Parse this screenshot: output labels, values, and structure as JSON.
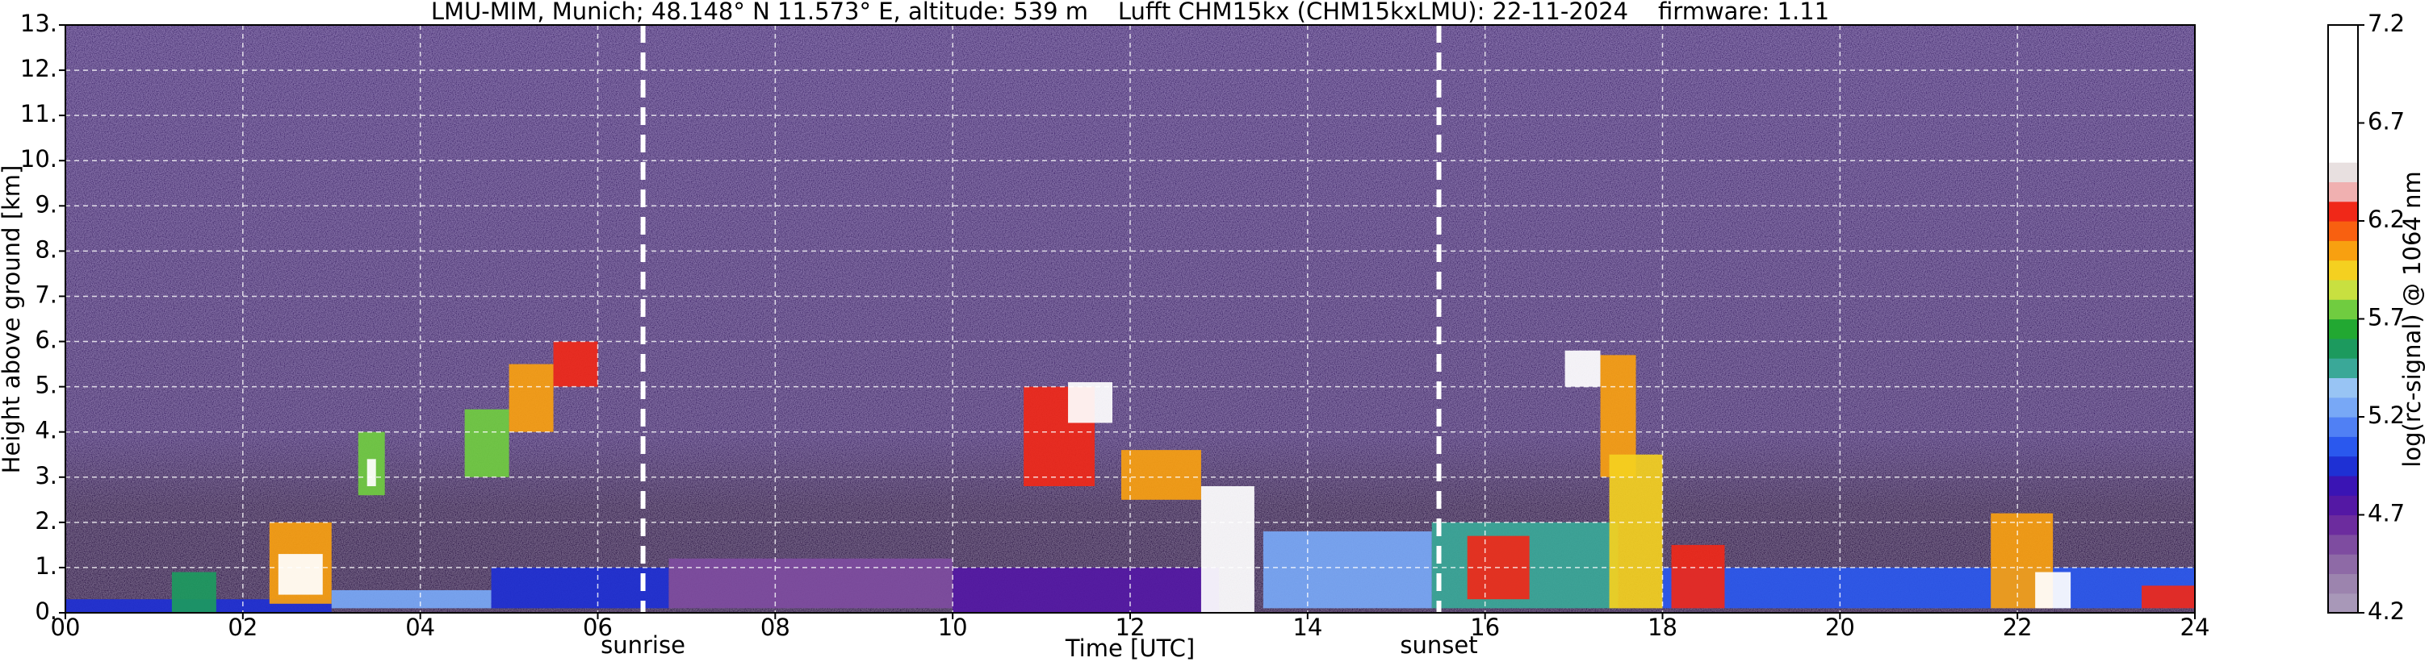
{
  "chart_data": {
    "type": "heatmap",
    "title": "LMU-MIM, Munich; 48.148° N 11.573° E, altitude: 539 m    Lufft CHM15kx (CHM15kxLMU): 22-11-2024    firmware: 1.11",
    "x_label": "Time [UTC]",
    "y_label": "Height above ground [km]",
    "colorbar_label": "log(rc-signal) @ 1064 nm",
    "xlim": [
      0,
      24
    ],
    "ylim": [
      0,
      13
    ],
    "xticks": [
      {
        "value": 0,
        "label": "00"
      },
      {
        "value": 2,
        "label": "02"
      },
      {
        "value": 4,
        "label": "04"
      },
      {
        "value": 6,
        "label": "06"
      },
      {
        "value": 8,
        "label": "08"
      },
      {
        "value": 10,
        "label": "10"
      },
      {
        "value": 12,
        "label": "12"
      },
      {
        "value": 14,
        "label": "14"
      },
      {
        "value": 16,
        "label": "16"
      },
      {
        "value": 18,
        "label": "18"
      },
      {
        "value": 20,
        "label": "20"
      },
      {
        "value": 22,
        "label": "22"
      },
      {
        "value": 24,
        "label": "24"
      }
    ],
    "yticks": [
      {
        "value": 0,
        "label": "0."
      },
      {
        "value": 1,
        "label": "1."
      },
      {
        "value": 2,
        "label": "2."
      },
      {
        "value": 3,
        "label": "3."
      },
      {
        "value": 4,
        "label": "4."
      },
      {
        "value": 5,
        "label": "5."
      },
      {
        "value": 6,
        "label": "6."
      },
      {
        "value": 7,
        "label": "7."
      },
      {
        "value": 8,
        "label": "8."
      },
      {
        "value": 9,
        "label": "9."
      },
      {
        "value": 10,
        "label": "10."
      },
      {
        "value": 11,
        "label": "11."
      },
      {
        "value": 12,
        "label": "12."
      },
      {
        "value": 13,
        "label": "13."
      }
    ],
    "clim": [
      4.2,
      7.2
    ],
    "cticks": [
      4.2,
      4.7,
      5.2,
      5.7,
      6.2,
      6.7,
      7.2
    ],
    "color_levels": [
      "#a898b8",
      "#9c84ae",
      "#8e6aa6",
      "#7e4ca0",
      "#6c2c9e",
      "#5418a4",
      "#3a14b4",
      "#1e30d4",
      "#2a58ee",
      "#5080f4",
      "#78a8f6",
      "#98c4f4",
      "#3aa898",
      "#1c9a5e",
      "#22a832",
      "#70cc40",
      "#c8e040",
      "#f4d020",
      "#f8a010",
      "#f86010",
      "#f02818",
      "#f0b0b0",
      "#e8e0e0",
      "#ffffff",
      "#ffffff",
      "#ffffff",
      "#ffffff",
      "#ffffff",
      "#ffffff",
      "#ffffff"
    ],
    "grid": true,
    "annotations": [
      {
        "text": "sunrise",
        "x": 6.51
      },
      {
        "text": "sunset",
        "x": 15.48
      }
    ],
    "cells": [
      {
        "x": [
          0,
          3
        ],
        "y": [
          0,
          0.3
        ],
        "value": 4.9
      },
      {
        "x": [
          1.2,
          1.7
        ],
        "y": [
          0,
          0.9
        ],
        "value": 5.6
      },
      {
        "x": [
          2.3,
          3.0
        ],
        "y": [
          0.2,
          2.0
        ],
        "value": 6.0
      },
      {
        "x": [
          2.4,
          2.9
        ],
        "y": [
          0.4,
          1.3
        ],
        "value": 6.6
      },
      {
        "x": [
          3.0,
          4.8
        ],
        "y": [
          0.1,
          0.5
        ],
        "value": 5.2
      },
      {
        "x": [
          3.3,
          3.6
        ],
        "y": [
          2.6,
          4.0
        ],
        "value": 5.8
      },
      {
        "x": [
          3.4,
          3.5
        ],
        "y": [
          2.8,
          3.4
        ],
        "value": 6.6
      },
      {
        "x": [
          4.5,
          5.0
        ],
        "y": [
          3.0,
          4.5
        ],
        "value": 5.7
      },
      {
        "x": [
          5.0,
          5.5
        ],
        "y": [
          4.0,
          5.5
        ],
        "value": 6.0
      },
      {
        "x": [
          5.5,
          6.0
        ],
        "y": [
          5.0,
          6.0
        ],
        "value": 6.3
      },
      {
        "x": [
          4.8,
          6.8
        ],
        "y": [
          0.1,
          1.0
        ],
        "value": 4.9
      },
      {
        "x": [
          6.8,
          10.0
        ],
        "y": [
          0.1,
          1.2
        ],
        "value": 4.6
      },
      {
        "x": [
          10.0,
          13.0
        ],
        "y": [
          0,
          1.0
        ],
        "value": 4.7
      },
      {
        "x": [
          10.8,
          11.6
        ],
        "y": [
          2.8,
          5.0
        ],
        "value": 6.2
      },
      {
        "x": [
          11.3,
          11.8
        ],
        "y": [
          4.2,
          5.1
        ],
        "value": 6.5
      },
      {
        "x": [
          11.9,
          12.8
        ],
        "y": [
          2.5,
          3.6
        ],
        "value": 6.0
      },
      {
        "x": [
          12.8,
          13.4
        ],
        "y": [
          0,
          2.8
        ],
        "value": 6.6
      },
      {
        "x": [
          13.5,
          15.4
        ],
        "y": [
          0.1,
          1.8
        ],
        "value": 5.2
      },
      {
        "x": [
          15.4,
          17.5
        ],
        "y": [
          0.1,
          2.0
        ],
        "value": 5.5
      },
      {
        "x": [
          15.8,
          16.5
        ],
        "y": [
          0.3,
          1.7
        ],
        "value": 6.3
      },
      {
        "x": [
          16.9,
          17.3
        ],
        "y": [
          5.0,
          5.8
        ],
        "value": 6.6
      },
      {
        "x": [
          17.3,
          17.7
        ],
        "y": [
          3.0,
          5.7
        ],
        "value": 6.1
      },
      {
        "x": [
          17.4,
          18.0
        ],
        "y": [
          0.1,
          3.5
        ],
        "value": 5.9
      },
      {
        "x": [
          18.0,
          24.0
        ],
        "y": [
          0.1,
          1.0
        ],
        "value": 5.1
      },
      {
        "x": [
          18.1,
          18.7
        ],
        "y": [
          0.1,
          1.5
        ],
        "value": 6.3
      },
      {
        "x": [
          21.7,
          22.4
        ],
        "y": [
          0.1,
          2.2
        ],
        "value": 6.0
      },
      {
        "x": [
          22.2,
          22.6
        ],
        "y": [
          0.1,
          0.9
        ],
        "value": 6.6
      },
      {
        "x": [
          23.4,
          24.0
        ],
        "y": [
          0.1,
          0.6
        ],
        "value": 6.2
      }
    ]
  }
}
